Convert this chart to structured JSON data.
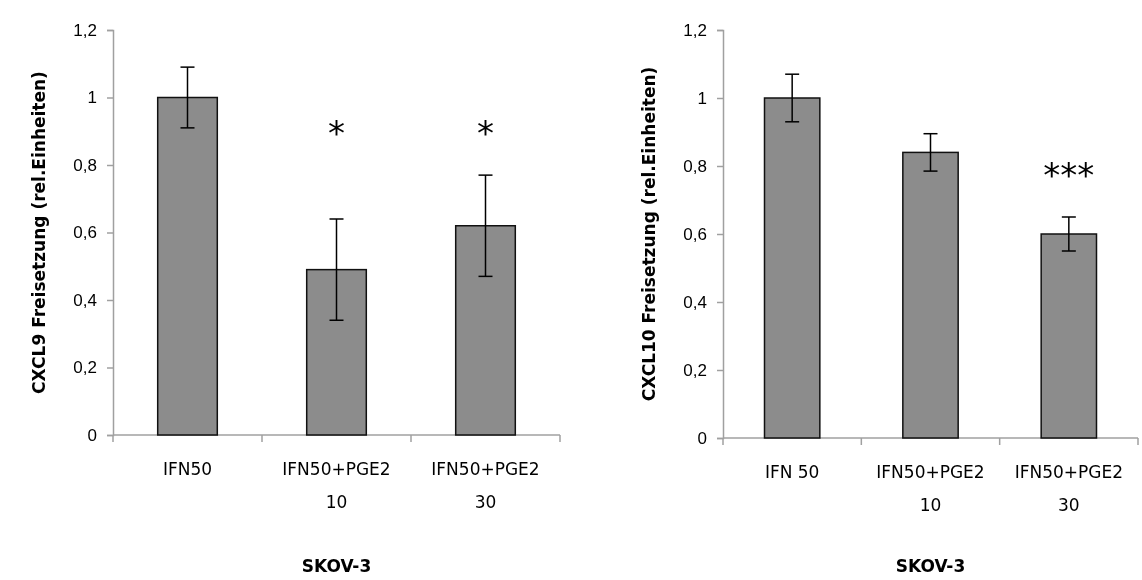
{
  "chart_data": [
    {
      "type": "bar",
      "categories": [
        "IFN50",
        "IFN50+PGE2\n10",
        "IFN50+PGE2\n30"
      ],
      "values": [
        1.0,
        0.49,
        0.62
      ],
      "errors": [
        0.09,
        0.15,
        0.15
      ],
      "color": "#8c8c8c",
      "ylim": [
        0,
        1.2
      ],
      "yticks": [
        {
          "value": 0,
          "label": "0"
        },
        {
          "value": 0.2,
          "label": "0,2"
        },
        {
          "value": 0.4,
          "label": "0,4"
        },
        {
          "value": 0.6,
          "label": "0,6"
        },
        {
          "value": 0.8,
          "label": "0,8"
        },
        {
          "value": 1,
          "label": "1"
        },
        {
          "value": 1.2,
          "label": "1,2"
        }
      ],
      "xlabel": "SKOV-3",
      "ylabel": "CXCL9 Freisetzung (rel.Einheiten)",
      "grid": false,
      "annotations": [
        "*",
        "*"
      ]
    },
    {
      "type": "bar",
      "categories": [
        "IFN 50",
        "IFN50+PGE2\n10",
        "IFN50+PGE2\n30"
      ],
      "values": [
        1.0,
        0.84,
        0.6
      ],
      "errors": [
        0.07,
        0.055,
        0.05
      ],
      "color": "#8c8c8c",
      "ylim": [
        0,
        1.2
      ],
      "yticks": [
        {
          "value": 0,
          "label": "0"
        },
        {
          "value": 0.2,
          "label": "0,2"
        },
        {
          "value": 0.4,
          "label": "0,4"
        },
        {
          "value": 0.6,
          "label": "0,6"
        },
        {
          "value": 0.8,
          "label": "0,8"
        },
        {
          "value": 1,
          "label": "1"
        },
        {
          "value": 1.2,
          "label": "1,2"
        }
      ],
      "xlabel": "SKOV-3",
      "ylabel": "CXCL10 Freisetzung (rel.Einheiten)",
      "grid": false,
      "annotations": [
        "***"
      ]
    }
  ]
}
